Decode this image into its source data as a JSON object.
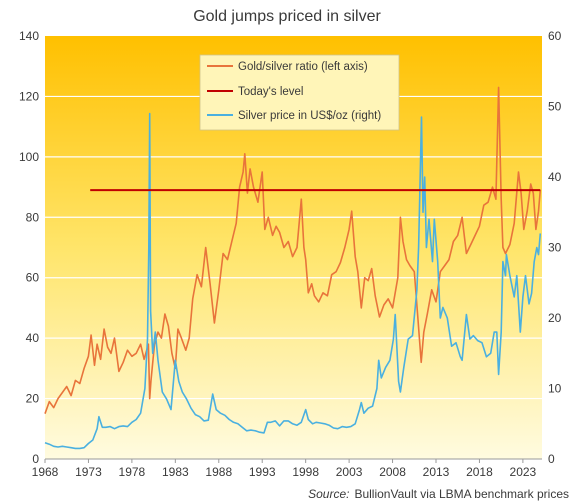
{
  "chart_data": {
    "type": "line",
    "title": "Gold jumps priced in silver",
    "source_label": "Source:",
    "source_text": "BullionVault via LBMA benchmark prices",
    "x_tick_labels": [
      "1968",
      "1973",
      "1978",
      "1983",
      "1988",
      "1993",
      "1998",
      "2003",
      "2008",
      "2013",
      "2018",
      "2023"
    ],
    "x_range": [
      1968,
      2025.2
    ],
    "left_axis": {
      "ticks": [
        0,
        20,
        40,
        60,
        80,
        100,
        120,
        140
      ],
      "ylim": [
        0,
        140
      ]
    },
    "right_axis": {
      "ticks": [
        0,
        10,
        20,
        30,
        40,
        50,
        60
      ],
      "ylim": [
        0,
        60
      ]
    },
    "grid": true,
    "legend_position": "top-center",
    "series": [
      {
        "name": "Gold/silver ratio (left axis)",
        "axis": "left",
        "color": "#e8743b",
        "points": [
          [
            1968.0,
            15
          ],
          [
            1968.5,
            19
          ],
          [
            1969.0,
            17
          ],
          [
            1969.5,
            20
          ],
          [
            1970.0,
            22
          ],
          [
            1970.5,
            24
          ],
          [
            1971.0,
            21
          ],
          [
            1971.5,
            26
          ],
          [
            1972.0,
            25
          ],
          [
            1972.5,
            30
          ],
          [
            1973.0,
            34
          ],
          [
            1973.3,
            41
          ],
          [
            1973.7,
            31
          ],
          [
            1974.0,
            38
          ],
          [
            1974.4,
            33
          ],
          [
            1974.8,
            43
          ],
          [
            1975.2,
            37
          ],
          [
            1975.6,
            35
          ],
          [
            1976.0,
            40
          ],
          [
            1976.5,
            29
          ],
          [
            1977.0,
            32
          ],
          [
            1977.5,
            36
          ],
          [
            1978.0,
            34
          ],
          [
            1978.5,
            35
          ],
          [
            1979.0,
            38
          ],
          [
            1979.4,
            33
          ],
          [
            1979.9,
            38
          ],
          [
            1980.05,
            20
          ],
          [
            1980.2,
            26
          ],
          [
            1980.6,
            38
          ],
          [
            1981.0,
            42
          ],
          [
            1981.4,
            40
          ],
          [
            1981.8,
            48
          ],
          [
            1982.2,
            44
          ],
          [
            1982.6,
            35
          ],
          [
            1983.0,
            30
          ],
          [
            1983.3,
            43
          ],
          [
            1983.7,
            40
          ],
          [
            1984.2,
            36
          ],
          [
            1984.6,
            40
          ],
          [
            1985.0,
            53
          ],
          [
            1985.5,
            61
          ],
          [
            1986.0,
            57
          ],
          [
            1986.5,
            70
          ],
          [
            1987.0,
            58
          ],
          [
            1987.5,
            45
          ],
          [
            1988.0,
            56
          ],
          [
            1988.5,
            68
          ],
          [
            1989.0,
            66
          ],
          [
            1989.5,
            72
          ],
          [
            1990.0,
            78
          ],
          [
            1990.4,
            90
          ],
          [
            1990.8,
            95
          ],
          [
            1991.0,
            101
          ],
          [
            1991.3,
            88
          ],
          [
            1991.6,
            96
          ],
          [
            1992.0,
            90
          ],
          [
            1992.5,
            85
          ],
          [
            1993.0,
            95
          ],
          [
            1993.3,
            76
          ],
          [
            1993.7,
            80
          ],
          [
            1994.2,
            74
          ],
          [
            1994.6,
            77
          ],
          [
            1995.0,
            75
          ],
          [
            1995.5,
            70
          ],
          [
            1996.0,
            72
          ],
          [
            1996.5,
            67
          ],
          [
            1997.0,
            70
          ],
          [
            1997.5,
            86
          ],
          [
            1997.8,
            70
          ],
          [
            1998.0,
            66
          ],
          [
            1998.3,
            55
          ],
          [
            1998.7,
            58
          ],
          [
            1999.0,
            54
          ],
          [
            1999.5,
            52
          ],
          [
            2000.0,
            55
          ],
          [
            2000.5,
            54
          ],
          [
            2001.0,
            61
          ],
          [
            2001.5,
            62
          ],
          [
            2002.0,
            65
          ],
          [
            2002.5,
            70
          ],
          [
            2003.0,
            76
          ],
          [
            2003.3,
            82
          ],
          [
            2003.7,
            67
          ],
          [
            2004.0,
            62
          ],
          [
            2004.4,
            50
          ],
          [
            2004.8,
            60
          ],
          [
            2005.2,
            59
          ],
          [
            2005.6,
            63
          ],
          [
            2006.0,
            54
          ],
          [
            2006.5,
            47
          ],
          [
            2007.0,
            51
          ],
          [
            2007.5,
            53
          ],
          [
            2008.0,
            50
          ],
          [
            2008.6,
            60
          ],
          [
            2008.9,
            80
          ],
          [
            2009.2,
            72
          ],
          [
            2009.6,
            66
          ],
          [
            2010.0,
            64
          ],
          [
            2010.5,
            62
          ],
          [
            2010.9,
            47
          ],
          [
            2011.3,
            32
          ],
          [
            2011.6,
            42
          ],
          [
            2012.0,
            48
          ],
          [
            2012.5,
            56
          ],
          [
            2013.0,
            52
          ],
          [
            2013.5,
            62
          ],
          [
            2014.0,
            64
          ],
          [
            2014.5,
            66
          ],
          [
            2015.0,
            72
          ],
          [
            2015.5,
            74
          ],
          [
            2016.0,
            80
          ],
          [
            2016.5,
            68
          ],
          [
            2017.0,
            71
          ],
          [
            2017.5,
            74
          ],
          [
            2018.0,
            77
          ],
          [
            2018.5,
            84
          ],
          [
            2019.0,
            85
          ],
          [
            2019.5,
            90
          ],
          [
            2019.9,
            86
          ],
          [
            2020.2,
            123
          ],
          [
            2020.5,
            86
          ],
          [
            2020.7,
            70
          ],
          [
            2021.0,
            68
          ],
          [
            2021.5,
            71
          ],
          [
            2022.0,
            78
          ],
          [
            2022.5,
            95
          ],
          [
            2022.8,
            88
          ],
          [
            2023.1,
            76
          ],
          [
            2023.5,
            82
          ],
          [
            2023.9,
            91
          ],
          [
            2024.2,
            88
          ],
          [
            2024.5,
            76
          ],
          [
            2024.8,
            82
          ],
          [
            2025.0,
            89
          ]
        ]
      },
      {
        "name": "Today's level",
        "axis": "left",
        "color": "#c00000",
        "points": [
          [
            1973.2,
            89
          ],
          [
            2025.0,
            89
          ]
        ]
      },
      {
        "name": "Silver price in US$/oz (right)",
        "axis": "right",
        "color": "#4ab0e0",
        "points": [
          [
            1968.0,
            2.3
          ],
          [
            1968.5,
            2.1
          ],
          [
            1969.0,
            1.8
          ],
          [
            1969.5,
            1.7
          ],
          [
            1970.0,
            1.8
          ],
          [
            1970.5,
            1.7
          ],
          [
            1971.0,
            1.6
          ],
          [
            1971.5,
            1.5
          ],
          [
            1972.0,
            1.5
          ],
          [
            1972.5,
            1.6
          ],
          [
            1973.0,
            2.2
          ],
          [
            1973.5,
            2.7
          ],
          [
            1974.0,
            4.3
          ],
          [
            1974.2,
            6.0
          ],
          [
            1974.6,
            4.5
          ],
          [
            1975.0,
            4.5
          ],
          [
            1975.5,
            4.6
          ],
          [
            1976.0,
            4.3
          ],
          [
            1976.5,
            4.6
          ],
          [
            1977.0,
            4.7
          ],
          [
            1977.5,
            4.6
          ],
          [
            1978.0,
            5.2
          ],
          [
            1978.5,
            5.6
          ],
          [
            1979.0,
            6.5
          ],
          [
            1979.5,
            10.0
          ],
          [
            1979.8,
            17.0
          ],
          [
            1979.95,
            30.0
          ],
          [
            1980.05,
            49.0
          ],
          [
            1980.15,
            21.0
          ],
          [
            1980.4,
            15.0
          ],
          [
            1980.7,
            18.0
          ],
          [
            1981.0,
            14.0
          ],
          [
            1981.5,
            9.5
          ],
          [
            1982.0,
            8.5
          ],
          [
            1982.5,
            7.0
          ],
          [
            1983.0,
            14.0
          ],
          [
            1983.4,
            11.0
          ],
          [
            1983.8,
            9.5
          ],
          [
            1984.3,
            8.5
          ],
          [
            1984.8,
            7.2
          ],
          [
            1985.3,
            6.3
          ],
          [
            1985.8,
            6.0
          ],
          [
            1986.3,
            5.4
          ],
          [
            1986.8,
            5.5
          ],
          [
            1987.3,
            9.2
          ],
          [
            1987.7,
            7.0
          ],
          [
            1988.2,
            6.5
          ],
          [
            1988.7,
            6.2
          ],
          [
            1989.2,
            5.6
          ],
          [
            1989.7,
            5.2
          ],
          [
            1990.2,
            5.0
          ],
          [
            1990.7,
            4.5
          ],
          [
            1991.2,
            4.0
          ],
          [
            1991.7,
            4.1
          ],
          [
            1992.2,
            4.0
          ],
          [
            1992.7,
            3.8
          ],
          [
            1993.2,
            3.7
          ],
          [
            1993.6,
            5.2
          ],
          [
            1994.0,
            5.2
          ],
          [
            1994.5,
            5.4
          ],
          [
            1995.0,
            4.7
          ],
          [
            1995.5,
            5.4
          ],
          [
            1996.0,
            5.4
          ],
          [
            1996.5,
            5.0
          ],
          [
            1997.0,
            4.8
          ],
          [
            1997.5,
            5.2
          ],
          [
            1998.0,
            7.0
          ],
          [
            1998.3,
            5.6
          ],
          [
            1998.8,
            5.0
          ],
          [
            1999.2,
            5.2
          ],
          [
            1999.7,
            5.1
          ],
          [
            2000.2,
            5.0
          ],
          [
            2000.7,
            4.8
          ],
          [
            2001.2,
            4.4
          ],
          [
            2001.7,
            4.3
          ],
          [
            2002.2,
            4.6
          ],
          [
            2002.7,
            4.5
          ],
          [
            2003.2,
            4.6
          ],
          [
            2003.7,
            5.0
          ],
          [
            2004.2,
            7.0
          ],
          [
            2004.4,
            8.0
          ],
          [
            2004.7,
            6.5
          ],
          [
            2005.2,
            7.2
          ],
          [
            2005.7,
            7.5
          ],
          [
            2006.2,
            10.0
          ],
          [
            2006.4,
            14.0
          ],
          [
            2006.7,
            11.5
          ],
          [
            2007.2,
            13.0
          ],
          [
            2007.7,
            14.0
          ],
          [
            2008.1,
            17.0
          ],
          [
            2008.3,
            20.5
          ],
          [
            2008.7,
            11.0
          ],
          [
            2008.9,
            9.5
          ],
          [
            2009.3,
            13.0
          ],
          [
            2009.8,
            17.0
          ],
          [
            2010.3,
            17.5
          ],
          [
            2010.8,
            24.0
          ],
          [
            2011.0,
            30.0
          ],
          [
            2011.33,
            48.5
          ],
          [
            2011.5,
            35.0
          ],
          [
            2011.7,
            40.0
          ],
          [
            2011.9,
            30.0
          ],
          [
            2012.2,
            34.0
          ],
          [
            2012.6,
            28.0
          ],
          [
            2012.8,
            34.0
          ],
          [
            2013.2,
            28.0
          ],
          [
            2013.5,
            20.0
          ],
          [
            2013.8,
            21.5
          ],
          [
            2014.3,
            20.0
          ],
          [
            2014.8,
            16.0
          ],
          [
            2015.3,
            16.5
          ],
          [
            2015.8,
            14.5
          ],
          [
            2016.0,
            14.0
          ],
          [
            2016.5,
            20.5
          ],
          [
            2016.9,
            17.0
          ],
          [
            2017.3,
            17.5
          ],
          [
            2017.8,
            16.8
          ],
          [
            2018.3,
            16.5
          ],
          [
            2018.8,
            14.5
          ],
          [
            2019.3,
            15.0
          ],
          [
            2019.7,
            18.0
          ],
          [
            2020.0,
            18.0
          ],
          [
            2020.2,
            12.0
          ],
          [
            2020.5,
            18.0
          ],
          [
            2020.7,
            28.0
          ],
          [
            2021.0,
            26.0
          ],
          [
            2021.1,
            29.0
          ],
          [
            2021.5,
            26.0
          ],
          [
            2022.0,
            23.0
          ],
          [
            2022.3,
            26.0
          ],
          [
            2022.7,
            18.0
          ],
          [
            2023.0,
            23.0
          ],
          [
            2023.3,
            26.0
          ],
          [
            2023.7,
            22.0
          ],
          [
            2024.0,
            23.5
          ],
          [
            2024.3,
            28.0
          ],
          [
            2024.6,
            30.0
          ],
          [
            2024.8,
            29.0
          ],
          [
            2025.0,
            32.0
          ]
        ]
      }
    ]
  }
}
